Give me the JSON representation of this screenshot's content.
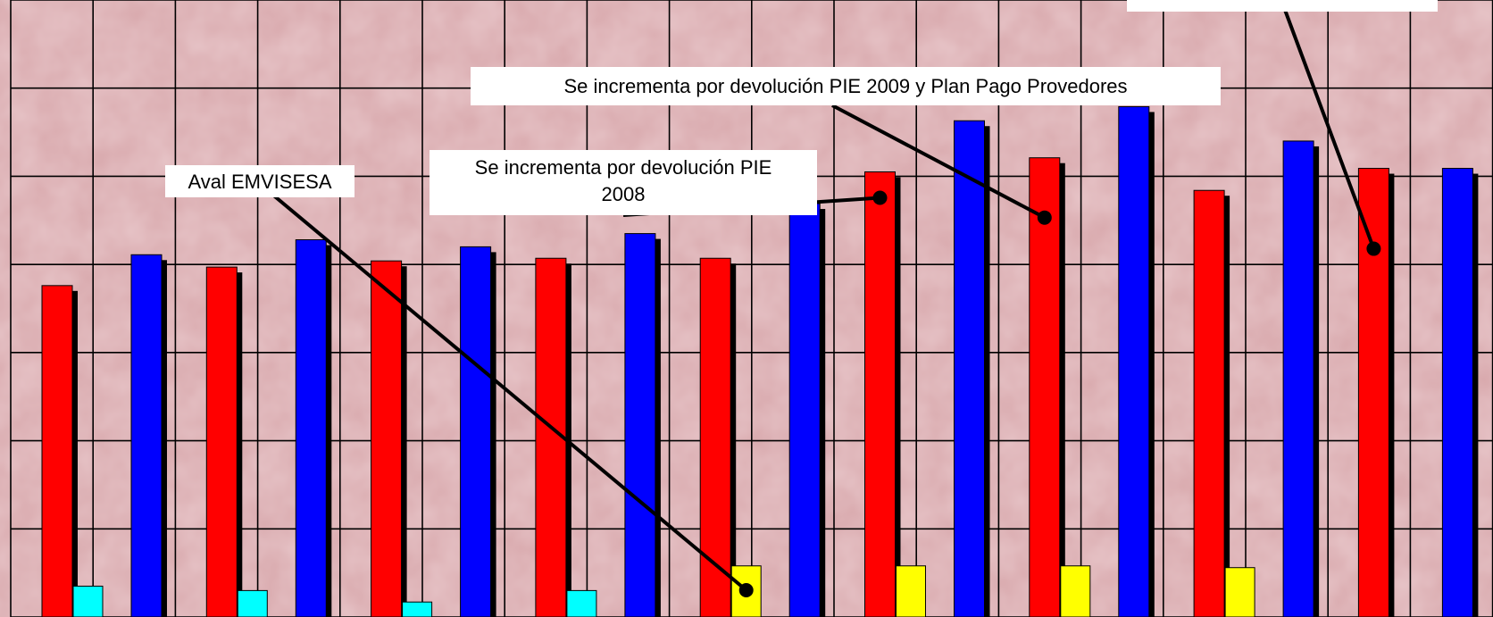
{
  "chart_data": {
    "type": "bar",
    "grid": true,
    "legend": "none",
    "ylim": [
      0,
      7
    ],
    "colors": {
      "red": "#ff0000",
      "blue": "#0000ff",
      "cyan": "#00ffff",
      "yellow": "#ffff00",
      "shadow": "#000000",
      "grid": "#000000",
      "background": "#d8a8ac"
    },
    "groups": [
      {
        "red": 3.76,
        "small": 0.35,
        "small_color": "cyan",
        "blue": 4.11
      },
      {
        "red": 3.97,
        "small": 0.3,
        "small_color": "cyan",
        "blue": 4.28
      },
      {
        "red": 4.04,
        "small": 0.17,
        "small_color": "cyan",
        "blue": 4.2
      },
      {
        "red": 4.07,
        "small": 0.3,
        "small_color": "cyan",
        "blue": 4.35
      },
      {
        "red": 4.07,
        "small": 0.58,
        "small_color": "yellow",
        "blue": 4.69
      },
      {
        "red": 5.05,
        "small": 0.58,
        "small_color": "yellow",
        "blue": 5.63
      },
      {
        "red": 5.21,
        "small": 0.58,
        "small_color": "yellow",
        "blue": 5.79
      },
      {
        "red": 4.84,
        "small": 0.56,
        "small_color": "yellow",
        "blue": 5.4
      },
      {
        "red": 5.09,
        "small": null,
        "small_color": null,
        "blue": 5.09
      }
    ],
    "annotations": [
      {
        "id": "aval",
        "lines": [
          "Aval EMVISESA"
        ],
        "target_group": 4,
        "target_bar": "small"
      },
      {
        "id": "pie2008",
        "lines": [
          "Se incrementa por devolución PIE",
          "2008"
        ],
        "target_group": 5,
        "target_bar": "red"
      },
      {
        "id": "pie2009",
        "lines": [
          "Se incrementa por devolución PIE 2009 y Plan Pago Provedores"
        ],
        "target_group": 6,
        "target_bar": "red"
      },
      {
        "id": "cut",
        "lines": [
          ""
        ],
        "target_group": 8,
        "target_bar": "red"
      }
    ]
  }
}
